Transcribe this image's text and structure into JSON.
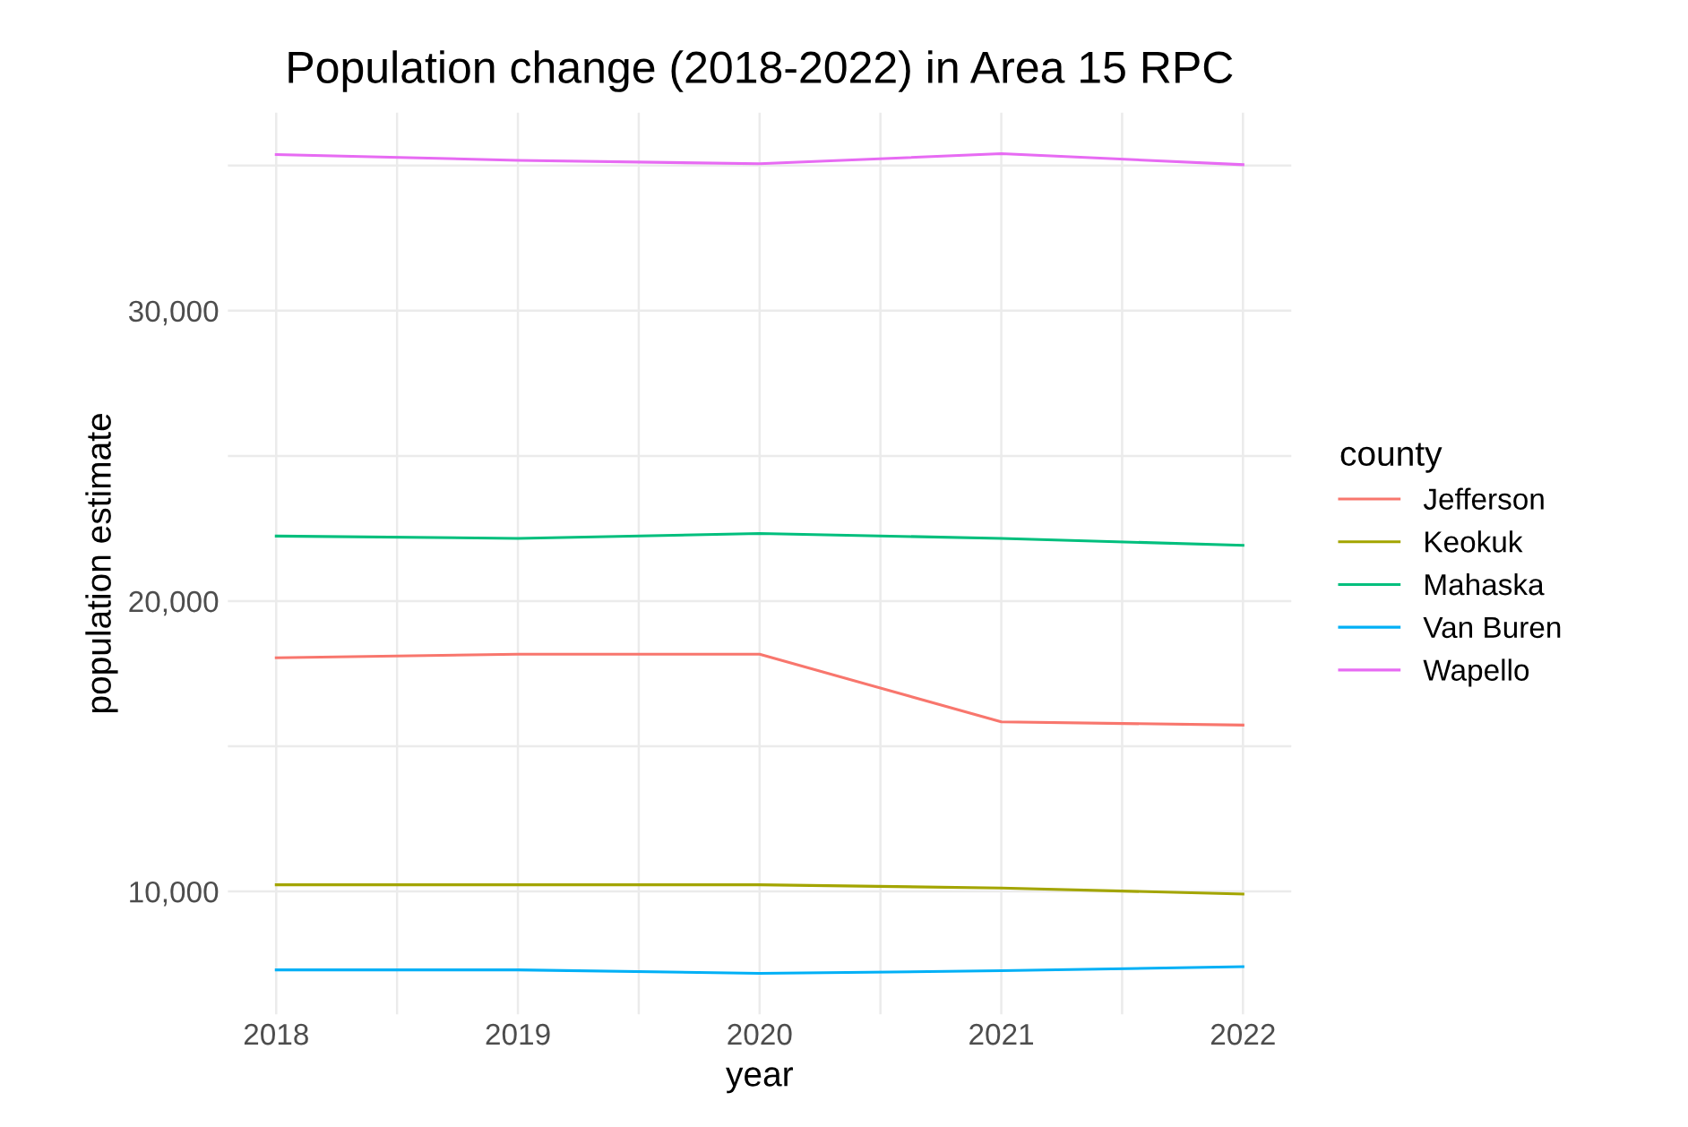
{
  "chart_data": {
    "type": "line",
    "title": "Population change (2018-2022) in Area 15 RPC",
    "xlabel": "year",
    "ylabel": "population estimate",
    "legend_title": "county",
    "x": [
      2018,
      2019,
      2020,
      2021,
      2022
    ],
    "series": [
      {
        "name": "Jefferson",
        "color": "#f8766d",
        "values": [
          18050,
          18170,
          18170,
          15840,
          15730
        ]
      },
      {
        "name": "Keokuk",
        "color": "#a3a500",
        "values": [
          10230,
          10230,
          10230,
          10120,
          9910
        ]
      },
      {
        "name": "Mahaska",
        "color": "#00bf7d",
        "values": [
          22240,
          22160,
          22330,
          22160,
          21920
        ]
      },
      {
        "name": "Van Buren",
        "color": "#00b0f6",
        "values": [
          7300,
          7300,
          7180,
          7270,
          7410
        ]
      },
      {
        "name": "Wapello",
        "color": "#e76bf3",
        "values": [
          35380,
          35180,
          35060,
          35410,
          35030
        ]
      }
    ],
    "xlim": [
      2017.8,
      2022.2
    ],
    "ylim": [
      5770,
      36820
    ],
    "xticks": [
      2018,
      {
        "value": 2018.5,
        "label": null
      },
      2019,
      {
        "value": 2019.5,
        "label": null
      },
      2020,
      {
        "value": 2020.5,
        "label": null
      },
      2021,
      {
        "value": 2021.5,
        "label": null
      },
      2022
    ],
    "yticks": [
      {
        "value": 10000,
        "label": "10,000"
      },
      {
        "value": 15000,
        "label": null
      },
      {
        "value": 20000,
        "label": "20,000"
      },
      {
        "value": 25000,
        "label": null
      },
      {
        "value": 30000,
        "label": "30,000"
      },
      {
        "value": 35000,
        "label": null
      }
    ],
    "grid": true,
    "legend": "right",
    "marker": "none",
    "line_style": "solid"
  }
}
